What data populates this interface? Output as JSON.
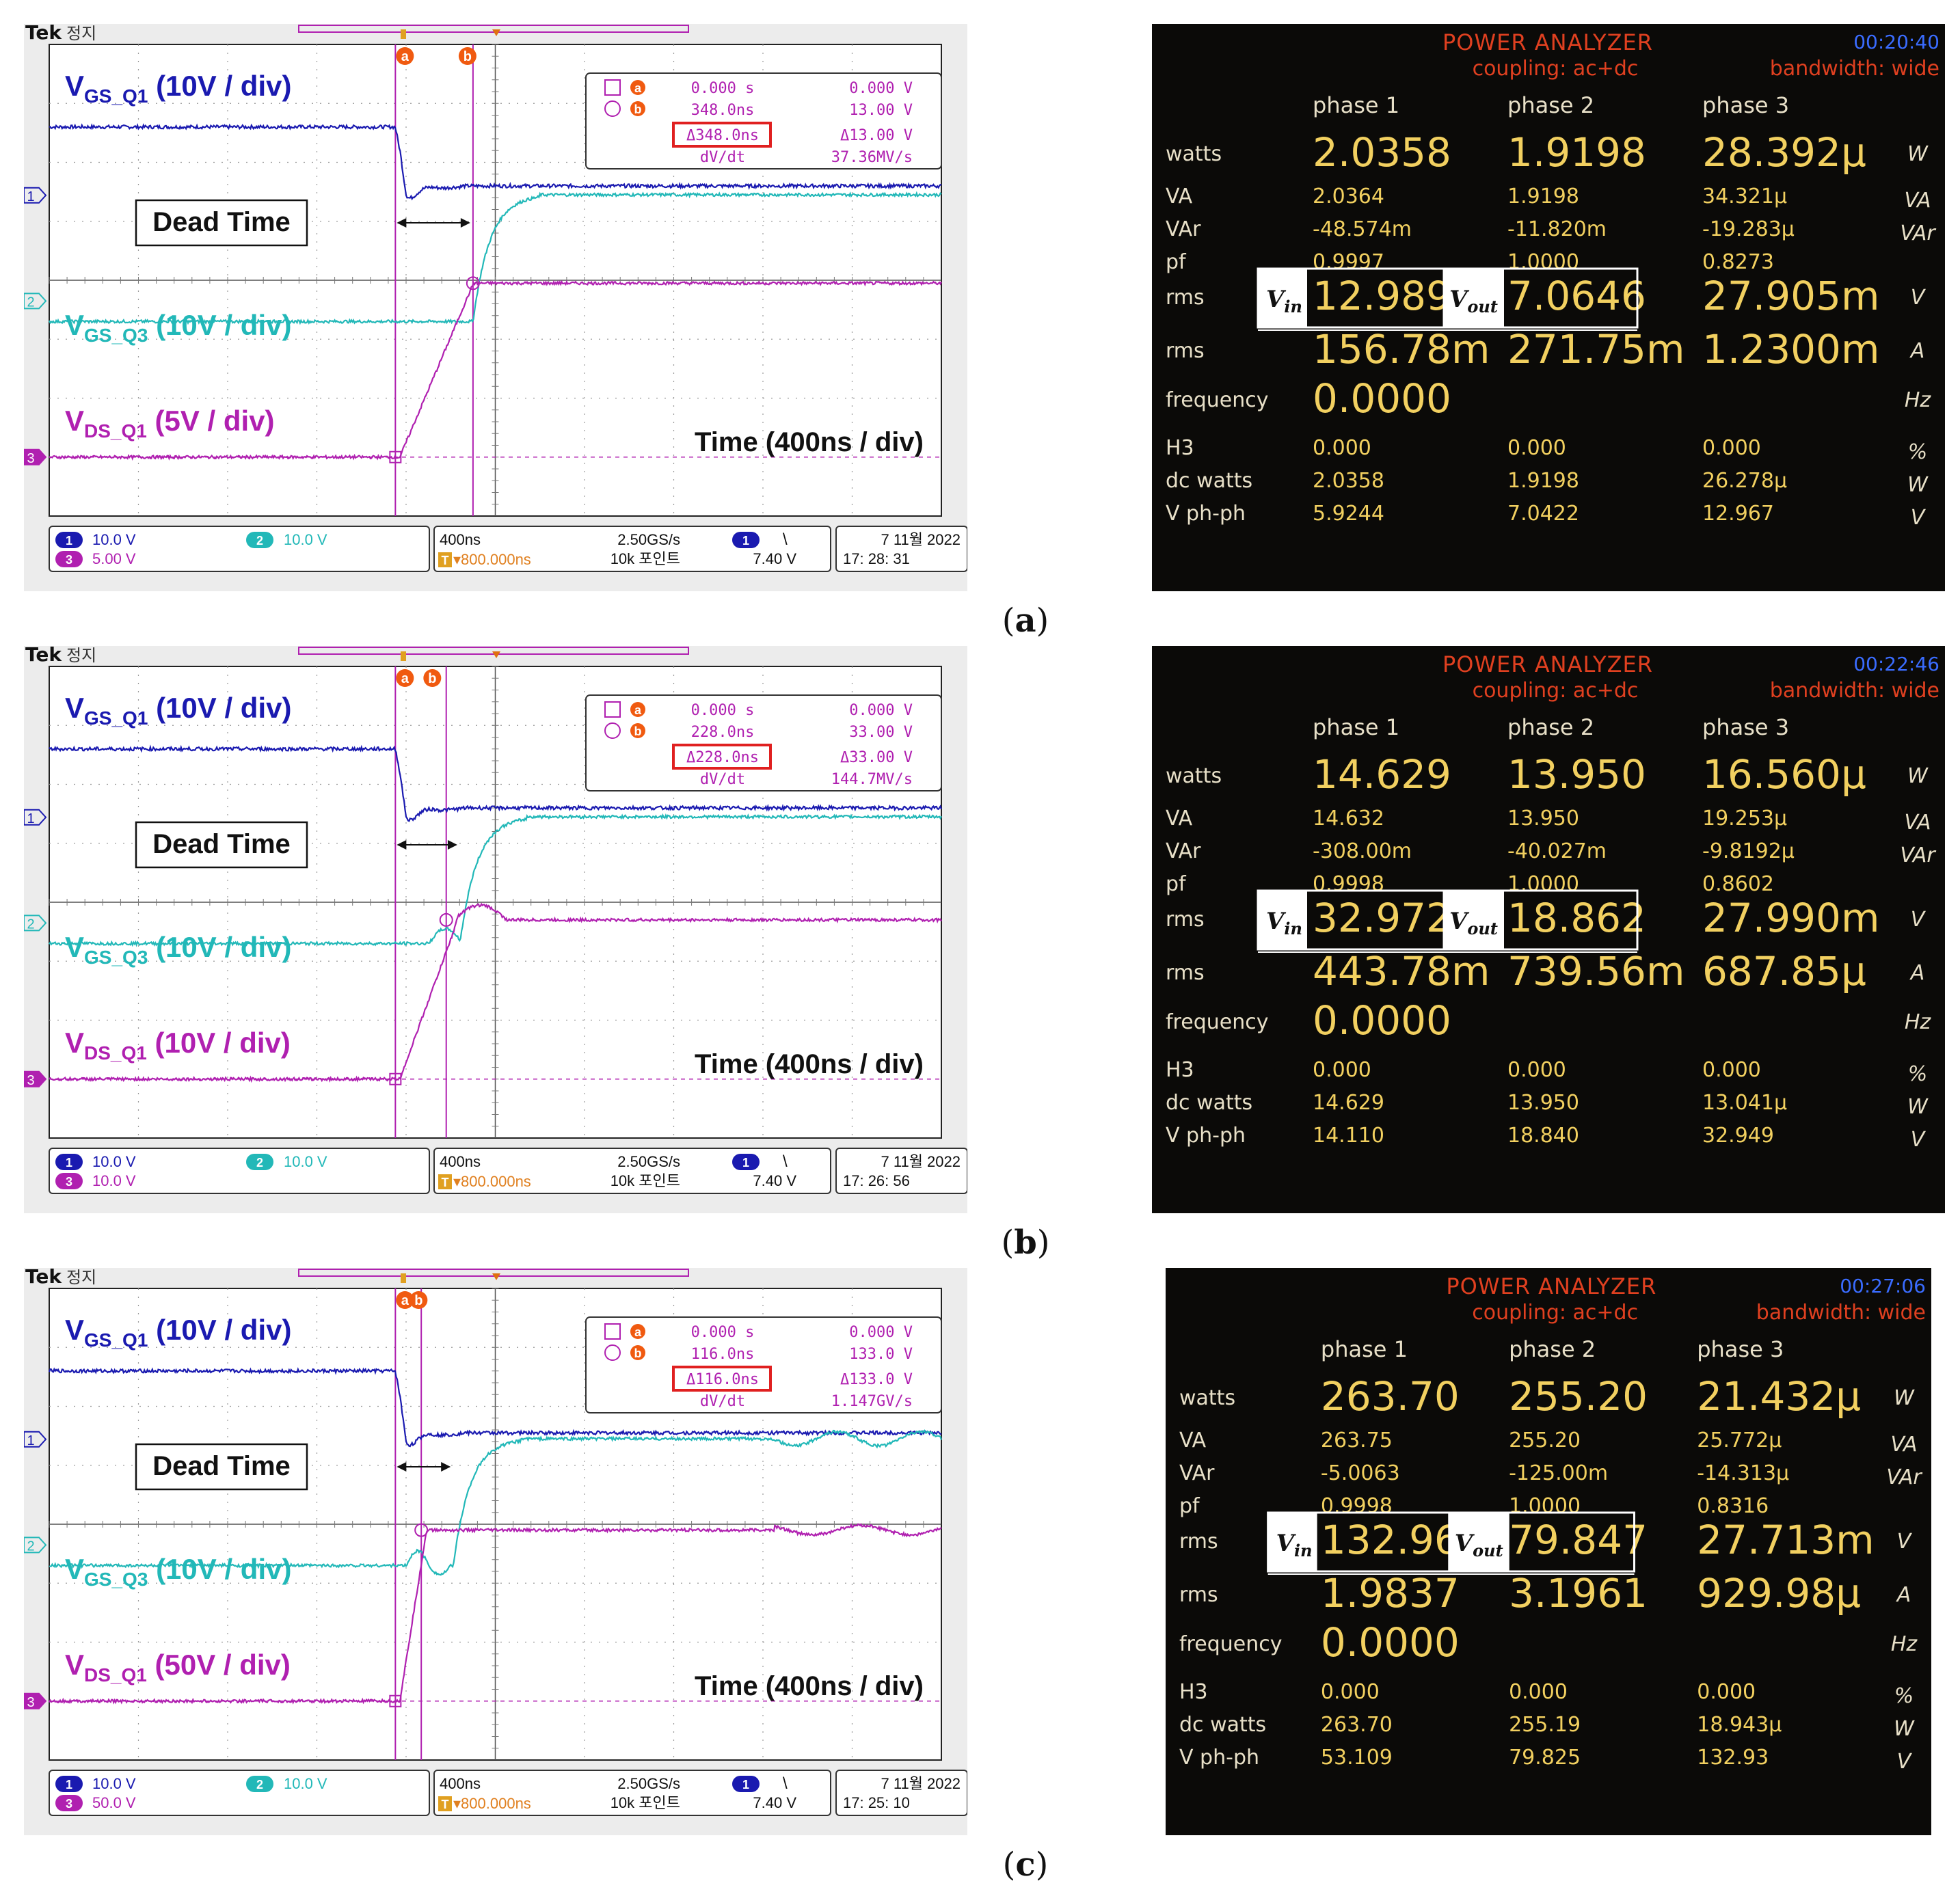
{
  "panels": [
    {
      "caption_letter": "a",
      "scope": {
        "brand": "Tek",
        "state": "정지",
        "cursor_a_label": "a",
        "cursor_b_label": "b",
        "readout": {
          "row_a_time": "0.000 s",
          "row_a_volt": "0.000 V",
          "row_b_time": "348.0ns",
          "row_b_volt": "13.00 V",
          "delta_time": "Δ348.0ns",
          "delta_volt": "Δ13.00 V",
          "dvdt_label": "dV/dt",
          "dvdt_value": "37.36MV/s"
        },
        "labels": {
          "vgs_q1_main": "V",
          "vgs_q1_sub": "GS_Q1",
          "vgs_q1_scale": " (10V / div)",
          "vgs_q3_main": "V",
          "vgs_q3_sub": "GS_Q3",
          "vgs_q3_scale": " (10V / div)",
          "vds_q1_main": "V",
          "vds_q1_sub": "DS_Q1",
          "vds_q1_scale": " (5V / div)",
          "dead_time": "Dead Time",
          "time_scale": "Time (400ns / div)"
        },
        "status": {
          "ch1_num": "1",
          "ch1_scale": "10.0 V",
          "ch2_num": "2",
          "ch2_scale": "10.0 V",
          "ch3_num": "3",
          "ch3_scale": "5.00 V",
          "timebase": "400ns",
          "trig_pos": "▾800.000ns",
          "trig_t": "T",
          "sample_rate": "2.50GS/s",
          "record": "10k 포인트",
          "trig_ch": "1",
          "trig_slope": "\\",
          "trig_level": "7.40 V",
          "date": "7 11월  2022",
          "time": "17: 28: 31"
        },
        "markers": {
          "ch1": "1",
          "ch2": "2",
          "ch3": "3"
        }
      },
      "analyzer": {
        "title": "POWER ANALYZER",
        "clock": "00:20:40",
        "coupling": "coupling: ac+dc",
        "bandwidth": "bandwidth: wide",
        "headers": [
          "phase 1",
          "phase 2",
          "phase 3"
        ],
        "rows": [
          {
            "label": "watts",
            "values": [
              "2.0358",
              "1.9198",
              "28.392μ"
            ],
            "unit": "W",
            "big": true
          },
          {
            "label": "VA",
            "values": [
              "2.0364",
              "1.9198",
              "34.321μ"
            ],
            "unit": "VA",
            "big": false
          },
          {
            "label": "VAr",
            "values": [
              "-48.574m",
              "-11.820m",
              "-19.283μ"
            ],
            "unit": "VAr",
            "big": false
          },
          {
            "label": "pf",
            "values": [
              "0.9997",
              "1.0000",
              "0.8273"
            ],
            "unit": "",
            "big": false
          },
          {
            "label": "rms",
            "values": [
              "12.989",
              "7.0646",
              "27.905m"
            ],
            "unit": "V",
            "big": true
          },
          {
            "label": "rms",
            "values": [
              "156.78m",
              "271.75m",
              "1.2300m"
            ],
            "unit": "A",
            "big": true
          },
          {
            "label": "frequency",
            "values": [
              "0.0000",
              "",
              ""
            ],
            "unit": "Hz",
            "big": true
          },
          {
            "label": "H3",
            "values": [
              "0.000",
              "0.000",
              "0.000"
            ],
            "unit": "%",
            "big": false
          },
          {
            "label": "dc watts",
            "values": [
              "2.0358",
              "1.9198",
              "26.278μ"
            ],
            "unit": "W",
            "big": false
          },
          {
            "label": "V ph-ph",
            "values": [
              "5.9244",
              "7.0422",
              "12.967"
            ],
            "unit": "V",
            "big": false
          }
        ],
        "vin_label": "V",
        "vin_sub": "in",
        "vout_label": "V",
        "vout_sub": "out"
      },
      "chart_data": {
        "type": "line",
        "xlabel": "Time (400ns / div)",
        "ylim_divisions": [
          -4,
          4
        ],
        "series": [
          {
            "name": "VGS_Q1 (10V / div)",
            "before": 2.6,
            "after": 1.6,
            "edge_ns": 0
          },
          {
            "name": "VGS_Q3 (10V / div)",
            "before": -0.7,
            "after": 1.45,
            "edge_ns": 348
          },
          {
            "name": "VDS_Q1 (5V / div)",
            "before": -3.0,
            "after": -0.05,
            "edge_ns": 0
          }
        ],
        "cursor_a_ns": 0,
        "cursor_b_ns": 348
      }
    },
    {
      "caption_letter": "b",
      "scope": {
        "brand": "Tek",
        "state": "정지",
        "cursor_a_label": "a",
        "cursor_b_label": "b",
        "readout": {
          "row_a_time": "0.000 s",
          "row_a_volt": "0.000 V",
          "row_b_time": "228.0ns",
          "row_b_volt": "33.00 V",
          "delta_time": "Δ228.0ns",
          "delta_volt": "Δ33.00 V",
          "dvdt_label": "dV/dt",
          "dvdt_value": "144.7MV/s"
        },
        "labels": {
          "vgs_q1_main": "V",
          "vgs_q1_sub": "GS_Q1",
          "vgs_q1_scale": " (10V / div)",
          "vgs_q3_main": "V",
          "vgs_q3_sub": "GS_Q3",
          "vgs_q3_scale": " (10V / div)",
          "vds_q1_main": "V",
          "vds_q1_sub": "DS_Q1",
          "vds_q1_scale": " (10V / div)",
          "dead_time": "Dead Time",
          "time_scale": "Time (400ns / div)"
        },
        "status": {
          "ch1_num": "1",
          "ch1_scale": "10.0 V",
          "ch2_num": "2",
          "ch2_scale": "10.0 V",
          "ch3_num": "3",
          "ch3_scale": "10.0 V",
          "timebase": "400ns",
          "trig_pos": "▾800.000ns",
          "trig_t": "T",
          "sample_rate": "2.50GS/s",
          "record": "10k 포인트",
          "trig_ch": "1",
          "trig_slope": "\\",
          "trig_level": "7.40 V",
          "date": "7 11월  2022",
          "time": "17: 26: 56"
        },
        "markers": {
          "ch1": "1",
          "ch2": "2",
          "ch3": "3"
        }
      },
      "analyzer": {
        "title": "POWER ANALYZER",
        "clock": "00:22:46",
        "coupling": "coupling: ac+dc",
        "bandwidth": "bandwidth: wide",
        "headers": [
          "phase 1",
          "phase 2",
          "phase 3"
        ],
        "rows": [
          {
            "label": "watts",
            "values": [
              "14.629",
              "13.950",
              "16.560μ"
            ],
            "unit": "W",
            "big": true
          },
          {
            "label": "VA",
            "values": [
              "14.632",
              "13.950",
              "19.253μ"
            ],
            "unit": "VA",
            "big": false
          },
          {
            "label": "VAr",
            "values": [
              "-308.00m",
              "-40.027m",
              "-9.8192μ"
            ],
            "unit": "VAr",
            "big": false
          },
          {
            "label": "pf",
            "values": [
              "0.9998",
              "1.0000",
              "0.8602"
            ],
            "unit": "",
            "big": false
          },
          {
            "label": "rms",
            "values": [
              "32.972",
              "18.862",
              "27.990m"
            ],
            "unit": "V",
            "big": true
          },
          {
            "label": "rms",
            "values": [
              "443.78m",
              "739.56m",
              "687.85μ"
            ],
            "unit": "A",
            "big": true
          },
          {
            "label": "frequency",
            "values": [
              "0.0000",
              "",
              ""
            ],
            "unit": "Hz",
            "big": true
          },
          {
            "label": "H3",
            "values": [
              "0.000",
              "0.000",
              "0.000"
            ],
            "unit": "%",
            "big": false
          },
          {
            "label": "dc watts",
            "values": [
              "14.629",
              "13.950",
              "13.041μ"
            ],
            "unit": "W",
            "big": false
          },
          {
            "label": "V ph-ph",
            "values": [
              "14.110",
              "18.840",
              "32.949"
            ],
            "unit": "V",
            "big": false
          }
        ],
        "vin_label": "V",
        "vin_sub": "in",
        "vout_label": "V",
        "vout_sub": "out"
      },
      "chart_data": {
        "type": "line",
        "xlabel": "Time (400ns / div)",
        "ylim_divisions": [
          -4,
          4
        ],
        "series": [
          {
            "name": "VGS_Q1 (10V / div)",
            "before": 2.6,
            "after": 1.6,
            "edge_ns": 0
          },
          {
            "name": "VGS_Q3 (10V / div)",
            "before": -0.7,
            "after": 1.45,
            "edge_ns": 290
          },
          {
            "name": "VDS_Q1 (10V / div)",
            "before": -3.0,
            "after": -0.3,
            "edge_ns": 0
          }
        ],
        "cursor_a_ns": 0,
        "cursor_b_ns": 228
      }
    },
    {
      "caption_letter": "c",
      "scope": {
        "brand": "Tek",
        "state": "정지",
        "cursor_a_label": "a",
        "cursor_b_label": "b",
        "readout": {
          "row_a_time": "0.000 s",
          "row_a_volt": "0.000 V",
          "row_b_time": "116.0ns",
          "row_b_volt": "133.0 V",
          "delta_time": "Δ116.0ns",
          "delta_volt": "Δ133.0 V",
          "dvdt_label": "dV/dt",
          "dvdt_value": "1.147GV/s"
        },
        "labels": {
          "vgs_q1_main": "V",
          "vgs_q1_sub": "GS_Q1",
          "vgs_q1_scale": " (10V / div)",
          "vgs_q3_main": "V",
          "vgs_q3_sub": "GS_Q3",
          "vgs_q3_scale": " (10V / div)",
          "vds_q1_main": "V",
          "vds_q1_sub": "DS_Q1",
          "vds_q1_scale": " (50V / div)",
          "dead_time": "Dead Time",
          "time_scale": "Time (400ns / div)"
        },
        "status": {
          "ch1_num": "1",
          "ch1_scale": "10.0 V",
          "ch2_num": "2",
          "ch2_scale": "10.0 V",
          "ch3_num": "3",
          "ch3_scale": "50.0 V",
          "timebase": "400ns",
          "trig_pos": "▾800.000ns",
          "trig_t": "T",
          "sample_rate": "2.50GS/s",
          "record": "10k 포인트",
          "trig_ch": "1",
          "trig_slope": "\\",
          "trig_level": "7.40 V",
          "date": "7 11월  2022",
          "time": "17: 25: 10"
        },
        "markers": {
          "ch1": "1",
          "ch2": "2",
          "ch3": "3"
        }
      },
      "analyzer": {
        "title": "POWER ANALYZER",
        "clock": "00:27:06",
        "coupling": "coupling: ac+dc",
        "bandwidth": "bandwidth: wide",
        "headers": [
          "phase 1",
          "phase 2",
          "phase 3"
        ],
        "rows": [
          {
            "label": "watts",
            "values": [
              "263.70",
              "255.20",
              "21.432μ"
            ],
            "unit": "W",
            "big": true
          },
          {
            "label": "VA",
            "values": [
              "263.75",
              "255.20",
              "25.772μ"
            ],
            "unit": "VA",
            "big": false
          },
          {
            "label": "VAr",
            "values": [
              "-5.0063",
              "-125.00m",
              "-14.313μ"
            ],
            "unit": "VAr",
            "big": false
          },
          {
            "label": "pf",
            "values": [
              "0.9998",
              "1.0000",
              "0.8316"
            ],
            "unit": "",
            "big": false
          },
          {
            "label": "rms",
            "values": [
              "132.96",
              "79.847",
              "27.713m"
            ],
            "unit": "V",
            "big": true
          },
          {
            "label": "rms",
            "values": [
              "1.9837",
              "3.1961",
              "929.98μ"
            ],
            "unit": "A",
            "big": true
          },
          {
            "label": "frequency",
            "values": [
              "0.0000",
              "",
              ""
            ],
            "unit": "Hz",
            "big": true
          },
          {
            "label": "H3",
            "values": [
              "0.000",
              "0.000",
              "0.000"
            ],
            "unit": "%",
            "big": false
          },
          {
            "label": "dc watts",
            "values": [
              "263.70",
              "255.19",
              "18.943μ"
            ],
            "unit": "W",
            "big": false
          },
          {
            "label": "V ph-ph",
            "values": [
              "53.109",
              "79.825",
              "132.93"
            ],
            "unit": "V",
            "big": false
          }
        ],
        "vin_label": "V",
        "vin_sub": "in",
        "vout_label": "V",
        "vout_sub": "out"
      },
      "chart_data": {
        "type": "line",
        "xlabel": "Time (400ns / div)",
        "ylim_divisions": [
          -4,
          4
        ],
        "series": [
          {
            "name": "VGS_Q1 (10V / div)",
            "before": 2.6,
            "after": 1.55,
            "edge_ns": 0
          },
          {
            "name": "VGS_Q3 (10V / div)",
            "before": -0.7,
            "after": 1.45,
            "edge_ns": 260
          },
          {
            "name": "VDS_Q1 (50V / div)",
            "before": -3.0,
            "after": -0.1,
            "edge_ns": 0
          }
        ],
        "cursor_a_ns": 0,
        "cursor_b_ns": 116
      }
    }
  ],
  "colors": {
    "ch1": "#1a1ab0",
    "ch2": "#22b8b8",
    "ch3": "#b020b0",
    "readout_red": "#e02020",
    "pa_title": "#e04020",
    "pa_clock": "#3a6cff",
    "pa_yellow": "#f2d060",
    "pa_white": "#e8e0c8"
  }
}
